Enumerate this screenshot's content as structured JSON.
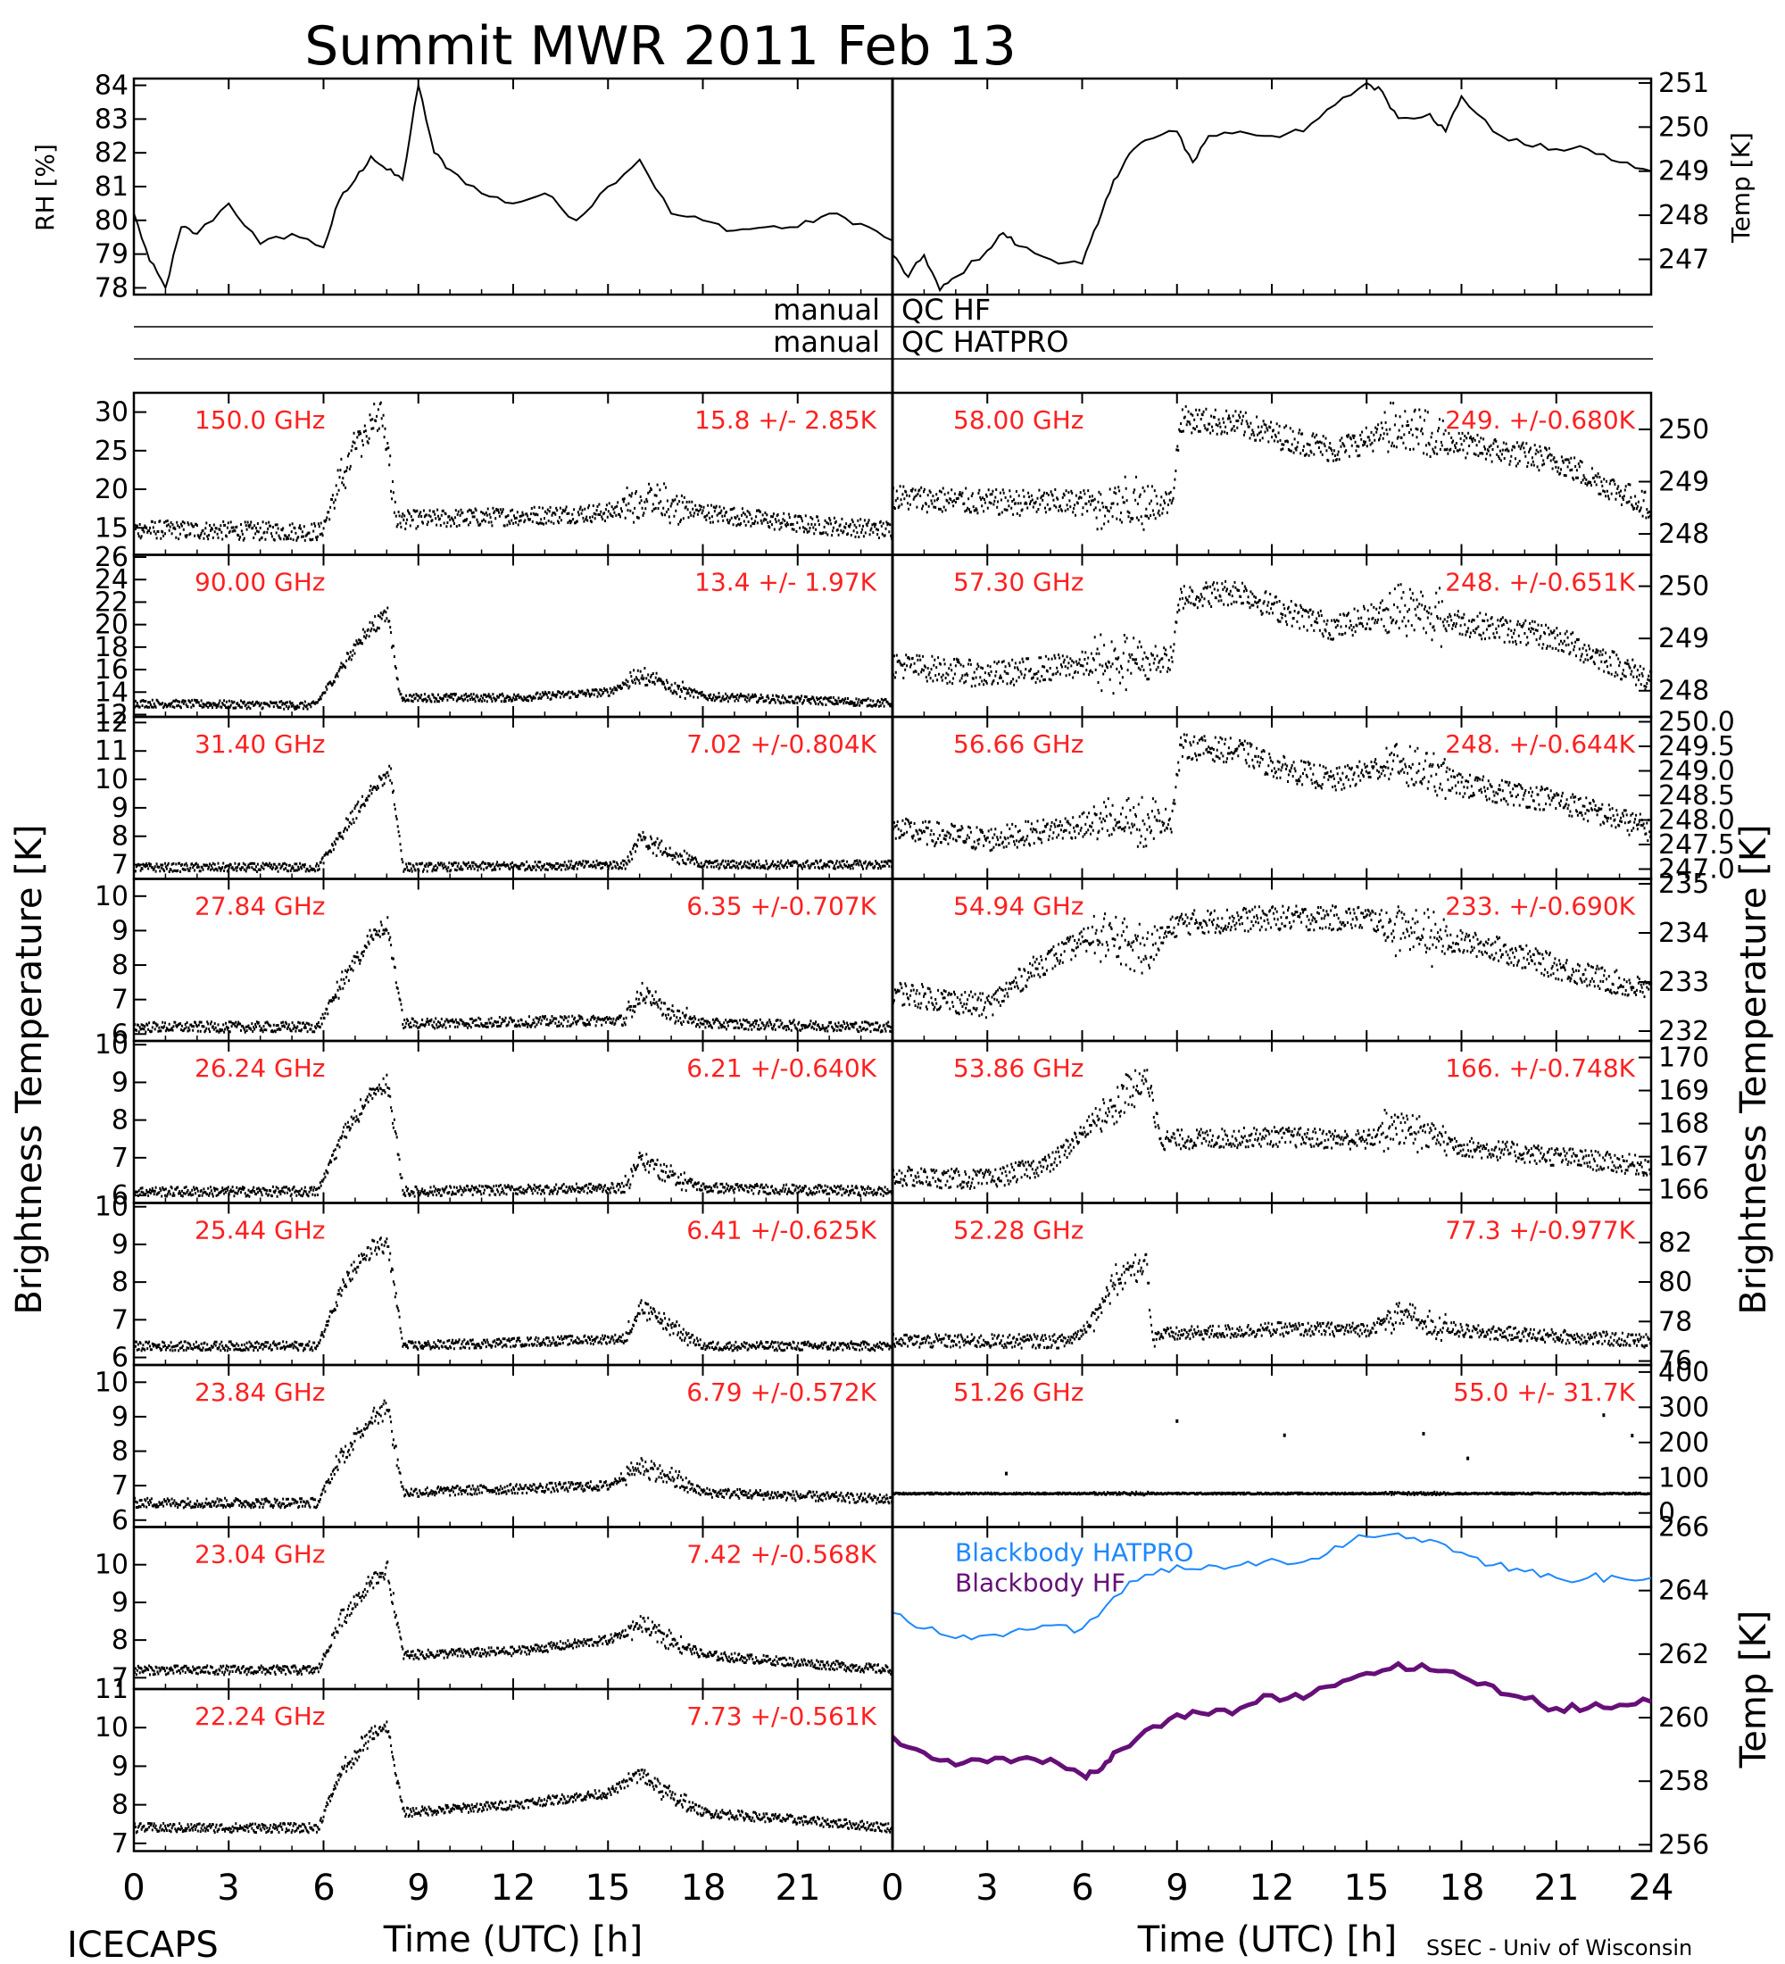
{
  "title": "Summit MWR 2011 Feb 13",
  "xlabel": "Time (UTC) [h]",
  "xticks": [
    "0",
    "3",
    "6",
    "9",
    "12",
    "15",
    "18",
    "21"
  ],
  "xticks_right": [
    "0",
    "3",
    "6",
    "9",
    "12",
    "15",
    "18",
    "21",
    "24"
  ],
  "qc_rows": [
    {
      "left": "manual",
      "right": "QC HF"
    },
    {
      "left": "manual",
      "right": "QC HATPRO"
    }
  ],
  "left_ylabel": "Brightness Temperature [K]",
  "right_ylabel": "Brightness Temperature [K]",
  "footer_left": "ICECAPS",
  "footer_right": "SSEC - Univ of Wisconsin",
  "colors": {
    "trace": "#000000",
    "freq_label": "#ff2020",
    "hatpro": "#1e88ff",
    "hf": "#660f78"
  },
  "chart_data": [
    {
      "type": "line",
      "id": "rh",
      "ylabel": "RH [%]",
      "ylim": [
        77.8,
        84.2
      ],
      "yticks": [
        "84",
        "83",
        "82",
        "81",
        "80",
        "79",
        "78"
      ],
      "xlim": [
        0,
        24
      ],
      "series": [
        {
          "x": [
            0,
            0.5,
            1,
            1.5,
            2,
            3,
            4,
            5,
            6,
            6.5,
            7,
            7.5,
            8,
            8.5,
            9,
            9.5,
            10,
            11,
            12,
            13,
            14,
            15,
            16,
            17,
            18,
            19,
            20,
            21,
            22,
            23,
            24
          ],
          "values": [
            80.2,
            78.8,
            78.0,
            79.8,
            79.6,
            80.5,
            79.3,
            79.6,
            79.2,
            80.6,
            81.2,
            81.9,
            81.5,
            81.2,
            84.0,
            82.0,
            81.5,
            80.8,
            80.5,
            80.8,
            80.0,
            81.0,
            81.8,
            80.2,
            80.0,
            79.7,
            79.8,
            79.8,
            80.2,
            79.9,
            79.4
          ]
        }
      ]
    },
    {
      "type": "line",
      "id": "temp",
      "ylabel": "Temp [K]",
      "ylim": [
        246.2,
        251.1
      ],
      "yticks": [
        "251",
        "250",
        "249",
        "248",
        "247"
      ],
      "xlim": [
        0,
        24
      ],
      "series": [
        {
          "x": [
            0,
            0.5,
            1,
            1.5,
            2,
            3,
            3.5,
            4,
            5,
            6,
            6.5,
            7,
            7.5,
            8,
            9,
            9.5,
            10,
            11,
            12,
            13,
            14,
            15,
            15.5,
            16,
            17,
            17.5,
            18,
            19,
            20,
            21,
            22,
            23,
            24
          ],
          "values": [
            247.1,
            246.6,
            247.1,
            246.3,
            246.6,
            247.2,
            247.6,
            247.3,
            247.0,
            246.9,
            247.8,
            248.8,
            249.4,
            249.7,
            249.9,
            249.2,
            249.8,
            249.9,
            249.8,
            249.9,
            250.5,
            251.0,
            250.8,
            250.2,
            250.3,
            249.9,
            250.7,
            249.9,
            249.6,
            249.5,
            249.5,
            249.2,
            249.0
          ]
        }
      ]
    },
    {
      "type": "scatter",
      "freq": "150.0 GHz",
      "stat": "15.8 +/-  2.85K",
      "ylim": [
        11.5,
        32.5
      ],
      "yticks": [
        "30",
        "25",
        "20",
        "15"
      ],
      "base": [
        [
          0,
          14.8
        ],
        [
          3,
          14.6
        ],
        [
          5.9,
          14.5
        ],
        [
          7,
          26
        ],
        [
          7.8,
          30
        ],
        [
          8.3,
          16
        ],
        [
          12,
          16.5
        ],
        [
          15,
          17
        ],
        [
          16,
          18.5
        ],
        [
          18,
          17
        ],
        [
          21,
          15.5
        ],
        [
          24,
          14.7
        ]
      ],
      "noise": 1.2
    },
    {
      "type": "scatter",
      "freq": "90.00 GHz",
      "stat": "13.4 +/-  1.97K",
      "ylim": [
        11.8,
        26.2
      ],
      "yticks": [
        "26",
        "24",
        "22",
        "20",
        "18",
        "16",
        "14",
        "12"
      ],
      "base": [
        [
          0,
          13
        ],
        [
          5.7,
          12.8
        ],
        [
          6.5,
          16
        ],
        [
          7.2,
          19
        ],
        [
          8,
          21
        ],
        [
          8.4,
          13.5
        ],
        [
          12,
          13.5
        ],
        [
          15,
          14
        ],
        [
          16,
          15.5
        ],
        [
          17,
          14.5
        ],
        [
          18,
          13.6
        ],
        [
          24,
          13
        ]
      ],
      "noise": 0.35
    },
    {
      "type": "scatter",
      "freq": "31.40 GHz",
      "stat": "7.02 +/-0.804K",
      "ylim": [
        6.5,
        12.2
      ],
      "yticks": [
        "12",
        "11",
        "10",
        "9",
        "8",
        "7"
      ],
      "base": [
        [
          0,
          6.9
        ],
        [
          5.8,
          6.9
        ],
        [
          6.5,
          8
        ],
        [
          7.5,
          9.6
        ],
        [
          8.1,
          10.2
        ],
        [
          8.5,
          6.9
        ],
        [
          15.5,
          7
        ],
        [
          16,
          7.9
        ],
        [
          17,
          7.4
        ],
        [
          18,
          7
        ],
        [
          24,
          7
        ]
      ],
      "noise": 0.15
    },
    {
      "type": "scatter",
      "freq": "27.84 GHz",
      "stat": "6.35 +/-0.707K",
      "ylim": [
        5.8,
        10.5
      ],
      "yticks": [
        "10",
        "9",
        "8",
        "7",
        "6"
      ],
      "base": [
        [
          0,
          6.2
        ],
        [
          5.8,
          6.2
        ],
        [
          6.5,
          7.4
        ],
        [
          7.5,
          8.8
        ],
        [
          8,
          9.2
        ],
        [
          8.5,
          6.3
        ],
        [
          15.5,
          6.4
        ],
        [
          16,
          7.2
        ],
        [
          17,
          6.6
        ],
        [
          18,
          6.3
        ],
        [
          24,
          6.2
        ]
      ],
      "noise": 0.15
    },
    {
      "type": "scatter",
      "freq": "26.24 GHz",
      "stat": "6.21 +/-0.640K",
      "ylim": [
        5.8,
        10.1
      ],
      "yticks": [
        "10",
        "9",
        "8",
        "7",
        "6"
      ],
      "base": [
        [
          0,
          6.1
        ],
        [
          5.8,
          6.1
        ],
        [
          6.5,
          7.5
        ],
        [
          7.5,
          8.7
        ],
        [
          8,
          9
        ],
        [
          8.5,
          6.1
        ],
        [
          15.5,
          6.2
        ],
        [
          16,
          7
        ],
        [
          17,
          6.5
        ],
        [
          18,
          6.2
        ],
        [
          24,
          6.1
        ]
      ],
      "noise": 0.13
    },
    {
      "type": "scatter",
      "freq": "25.44 GHz",
      "stat": "6.41 +/-0.625K",
      "ylim": [
        5.8,
        10.1
      ],
      "yticks": [
        "10",
        "9",
        "8",
        "7",
        "6"
      ],
      "base": [
        [
          0,
          6.3
        ],
        [
          5.8,
          6.3
        ],
        [
          6.5,
          7.8
        ],
        [
          7.5,
          8.9
        ],
        [
          8,
          9
        ],
        [
          8.5,
          6.3
        ],
        [
          15.5,
          6.5
        ],
        [
          16,
          7.3
        ],
        [
          17,
          6.8
        ],
        [
          18,
          6.3
        ],
        [
          24,
          6.3
        ]
      ],
      "noise": 0.12
    },
    {
      "type": "scatter",
      "freq": "23.84 GHz",
      "stat": "6.79 +/-0.572K",
      "ylim": [
        5.8,
        10.5
      ],
      "yticks": [
        "10",
        "9",
        "8",
        "7",
        "6"
      ],
      "base": [
        [
          0,
          6.5
        ],
        [
          5.8,
          6.5
        ],
        [
          6.5,
          7.8
        ],
        [
          7.5,
          9
        ],
        [
          8,
          9.3
        ],
        [
          8.5,
          6.8
        ],
        [
          15,
          7
        ],
        [
          16,
          7.6
        ],
        [
          17,
          7.2
        ],
        [
          18,
          6.8
        ],
        [
          24,
          6.6
        ]
      ],
      "noise": 0.14
    },
    {
      "type": "scatter",
      "freq": "23.04 GHz",
      "stat": "7.42 +/-0.568K",
      "ylim": [
        6.7,
        11.0
      ],
      "yticks": [
        "10",
        "9",
        "8",
        "7"
      ],
      "base": [
        [
          0,
          7.2
        ],
        [
          5.8,
          7.2
        ],
        [
          6.5,
          8.5
        ],
        [
          7.5,
          9.6
        ],
        [
          8,
          9.8
        ],
        [
          8.5,
          7.6
        ],
        [
          12,
          7.7
        ],
        [
          15,
          8
        ],
        [
          16,
          8.4
        ],
        [
          17,
          8
        ],
        [
          18,
          7.6
        ],
        [
          24,
          7.2
        ]
      ],
      "noise": 0.12
    },
    {
      "type": "scatter",
      "freq": "22.24 GHz",
      "stat": "7.73 +/-0.561K",
      "ylim": [
        6.8,
        11.0
      ],
      "yticks": [
        "11",
        "10",
        "9",
        "8",
        "7"
      ],
      "base": [
        [
          0,
          7.4
        ],
        [
          5.8,
          7.4
        ],
        [
          6.5,
          8.8
        ],
        [
          7.5,
          9.8
        ],
        [
          8,
          10
        ],
        [
          8.5,
          7.8
        ],
        [
          12,
          8
        ],
        [
          15,
          8.3
        ],
        [
          16,
          8.8
        ],
        [
          17,
          8.2
        ],
        [
          18,
          7.8
        ],
        [
          24,
          7.4
        ]
      ],
      "noise": 0.12
    },
    {
      "type": "scatter",
      "freq": "58.00 GHz",
      "stat": "249. +/-0.680K",
      "ylim": [
        247.6,
        250.7
      ],
      "yticks": [
        "250",
        "249",
        "248"
      ],
      "base": [
        [
          0,
          248.7
        ],
        [
          3,
          248.6
        ],
        [
          6,
          248.6
        ],
        [
          8.8,
          248.6
        ],
        [
          9.1,
          250.2
        ],
        [
          11,
          250.1
        ],
        [
          12,
          249.9
        ],
        [
          14,
          249.6
        ],
        [
          16,
          250
        ],
        [
          18,
          249.7
        ],
        [
          21,
          249.4
        ],
        [
          24,
          248.5
        ]
      ],
      "noise": 0.25
    },
    {
      "type": "scatter",
      "freq": "57.30 GHz",
      "stat": "248. +/-0.651K",
      "ylim": [
        247.5,
        250.6
      ],
      "yticks": [
        "250",
        "249",
        "248"
      ],
      "base": [
        [
          0,
          248.5
        ],
        [
          3,
          248.3
        ],
        [
          6,
          248.5
        ],
        [
          8.8,
          248.6
        ],
        [
          9.1,
          249.8
        ],
        [
          11,
          249.9
        ],
        [
          12,
          249.6
        ],
        [
          14,
          249.2
        ],
        [
          16,
          249.6
        ],
        [
          18,
          249.3
        ],
        [
          21,
          249
        ],
        [
          24,
          248.2
        ]
      ],
      "noise": 0.25
    },
    {
      "type": "scatter",
      "freq": "56.66 GHz",
      "stat": "248. +/-0.644K",
      "ylim": [
        246.8,
        250.1
      ],
      "yticks": [
        "250.0",
        "249.5",
        "249.0",
        "248.5",
        "248.0",
        "247.5",
        "247.0"
      ],
      "base": [
        [
          0,
          247.8
        ],
        [
          3,
          247.6
        ],
        [
          6,
          247.9
        ],
        [
          8.8,
          248
        ],
        [
          9.1,
          249.5
        ],
        [
          11,
          249.4
        ],
        [
          12,
          249.1
        ],
        [
          14,
          248.8
        ],
        [
          16,
          249.2
        ],
        [
          18,
          248.7
        ],
        [
          21,
          248.4
        ],
        [
          24,
          247.8
        ]
      ],
      "noise": 0.25
    },
    {
      "type": "scatter",
      "freq": "54.94 GHz",
      "stat": "233. +/-0.690K",
      "ylim": [
        231.8,
        235.1
      ],
      "yticks": [
        "235",
        "234",
        "233",
        "232"
      ],
      "base": [
        [
          0,
          232.8
        ],
        [
          3,
          232.5
        ],
        [
          4.5,
          233.3
        ],
        [
          6.5,
          234
        ],
        [
          8,
          233.6
        ],
        [
          9,
          234.2
        ],
        [
          12,
          234.3
        ],
        [
          15,
          234.3
        ],
        [
          17,
          233.9
        ],
        [
          19,
          233.7
        ],
        [
          21,
          233.3
        ],
        [
          24,
          232.8
        ]
      ],
      "noise": 0.25
    },
    {
      "type": "scatter",
      "freq": "53.86 GHz",
      "stat": "166. +/-0.748K",
      "ylim": [
        165.6,
        170.5
      ],
      "yticks": [
        "170",
        "169",
        "168",
        "167",
        "166"
      ],
      "base": [
        [
          0,
          166.4
        ],
        [
          3,
          166.3
        ],
        [
          5,
          166.8
        ],
        [
          6.5,
          168.2
        ],
        [
          7.5,
          169
        ],
        [
          8,
          169.4
        ],
        [
          8.5,
          167.5
        ],
        [
          12,
          167.6
        ],
        [
          15,
          167.5
        ],
        [
          16,
          168
        ],
        [
          18,
          167.3
        ],
        [
          21,
          167
        ],
        [
          24,
          166.7
        ]
      ],
      "noise": 0.3
    },
    {
      "type": "scatter",
      "freq": "52.28 GHz",
      "stat": "77.3 +/-0.977K",
      "ylim": [
        75.8,
        84.0
      ],
      "yticks": [
        "82",
        "80",
        "78",
        "76"
      ],
      "base": [
        [
          0,
          77
        ],
        [
          5.5,
          77
        ],
        [
          6,
          77.5
        ],
        [
          7,
          80
        ],
        [
          8,
          81
        ],
        [
          8.2,
          77.3
        ],
        [
          12,
          77.6
        ],
        [
          15,
          77.6
        ],
        [
          16,
          78.3
        ],
        [
          18,
          77.5
        ],
        [
          24,
          77
        ]
      ],
      "noise": 0.35
    },
    {
      "type": "scatter",
      "freq": "51.26 GHz",
      "stat": "55.0 +/- 31.7K",
      "ylim": [
        -40,
        420
      ],
      "yticks": [
        "400",
        "300",
        "200",
        "100",
        "0"
      ],
      "base": [
        [
          0,
          55
        ],
        [
          24,
          55
        ]
      ],
      "noise": 2,
      "spikes": true
    },
    {
      "type": "line",
      "id": "blackbody",
      "ylabel": "Temp [K]",
      "ylim": [
        255.8,
        266.0
      ],
      "yticks": [
        "266",
        "264",
        "262",
        "260",
        "258",
        "256"
      ],
      "xlim": [
        0,
        24
      ],
      "series": [
        {
          "name": "Blackbody HATPRO",
          "x": [
            0,
            1,
            2,
            3,
            4,
            5,
            6,
            7,
            8,
            9,
            10,
            11,
            12,
            13,
            14,
            15,
            16,
            17,
            18,
            19,
            20,
            21,
            22,
            23,
            24
          ],
          "values": [
            263.3,
            262.8,
            262.5,
            262.6,
            262.8,
            262.9,
            262.8,
            263.8,
            264.5,
            264.8,
            264.8,
            264.8,
            265.0,
            264.9,
            265.4,
            265.7,
            265.8,
            265.6,
            265.2,
            264.8,
            264.6,
            264.4,
            264.4,
            264.4,
            264.4
          ]
        },
        {
          "name": "Blackbody HF",
          "x": [
            0,
            1,
            2,
            3,
            4,
            5,
            6,
            6.5,
            7,
            8,
            9,
            10,
            11,
            12,
            13,
            14,
            15,
            16,
            17,
            18,
            19,
            20,
            21,
            22,
            23,
            24
          ],
          "values": [
            259.4,
            258.9,
            258.5,
            258.6,
            258.7,
            258.7,
            258.2,
            258.3,
            258.9,
            259.6,
            260.1,
            260.1,
            260.3,
            260.7,
            260.6,
            261.0,
            261.4,
            261.7,
            261.5,
            261.3,
            261.0,
            260.6,
            260.3,
            260.3,
            260.4,
            260.5
          ]
        }
      ]
    }
  ]
}
